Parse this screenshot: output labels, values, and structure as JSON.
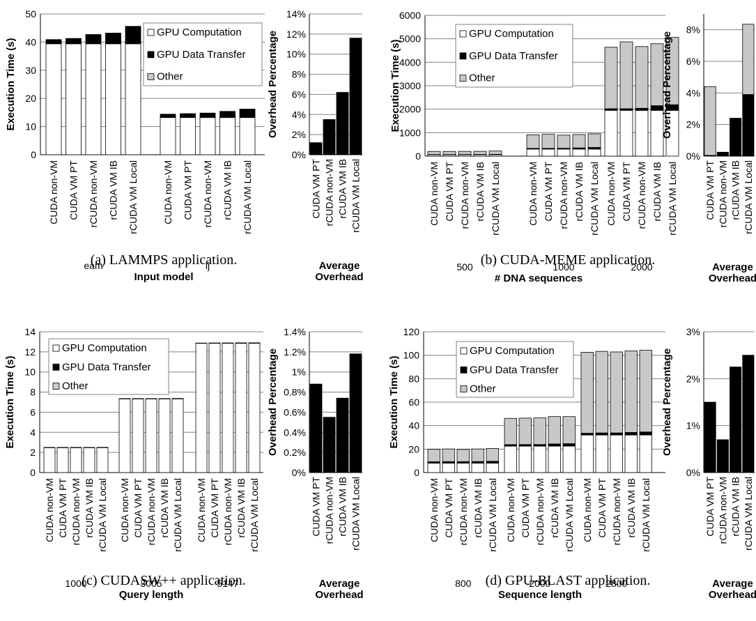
{
  "colors": {
    "computation": "#ffffff",
    "transfer": "#000000",
    "other": "#c8c8c8",
    "grid": "#808080",
    "axis": "#000000"
  },
  "legend": [
    "GPU Computation",
    "GPU Data Transfer",
    "Other"
  ],
  "overhead_category_label": "Average Overhead",
  "chart_data": [
    {
      "id": "a",
      "type": "bar",
      "stacked": true,
      "caption": "(a) LAMMPS application.",
      "ylabel": "Execution Time (s)",
      "xlabel": "Input model",
      "ylim": [
        0,
        50
      ],
      "yticks": [
        0,
        10,
        20,
        30,
        40,
        50
      ],
      "grid": true,
      "legend_position": "top-right",
      "groups": [
        "eam",
        "lj"
      ],
      "bar_labels": [
        [
          "CUDA non-VM",
          "CUDA VM PT",
          "rCUDA non-VM",
          "rCUDA VM IB",
          "rCUDA VM Local"
        ],
        [
          "CUDA non-VM",
          "CUDA VM PT",
          "rCUDA non-VM",
          "rCUDA VM IB",
          "rCUDA VM Local"
        ]
      ],
      "series": [
        {
          "name": "GPU Computation",
          "values": [
            [
              39.4,
              39.4,
              39.4,
              39.4,
              39.4
            ],
            [
              13.2,
              13.2,
              13.2,
              13.2,
              13.2
            ]
          ]
        },
        {
          "name": "GPU Data Transfer",
          "values": [
            [
              1.5,
              1.9,
              3.3,
              3.8,
              6.2
            ],
            [
              1.2,
              1.4,
              1.6,
              2.2,
              3.0
            ]
          ]
        },
        {
          "name": "Other",
          "values": [
            [
              0,
              0,
              0,
              0,
              0
            ],
            [
              0,
              0,
              0,
              0,
              0
            ]
          ]
        }
      ],
      "overhead": {
        "ylabel": "Overhead Percentage",
        "ylim": [
          0,
          14
        ],
        "yticks": [
          "0%",
          "2%",
          "4%",
          "6%",
          "8%",
          "10%",
          "12%",
          "14%"
        ],
        "labels": [
          "CUDA VM PT",
          "rCUDA non-VM",
          "rCUDA VM IB",
          "rCUDA VM Local"
        ],
        "transfer": [
          1.2,
          3.5,
          6.2,
          11.6
        ],
        "other": [
          0,
          0,
          0,
          0
        ]
      }
    },
    {
      "id": "b",
      "type": "bar",
      "stacked": true,
      "caption": "(b) CUDA-MEME application.",
      "ylabel": "Execution Time (s)",
      "xlabel": "# DNA sequences",
      "ylim": [
        0,
        6000
      ],
      "yticks": [
        0,
        1000,
        2000,
        3000,
        4000,
        5000,
        6000
      ],
      "grid": true,
      "legend_position": "top-left",
      "groups": [
        "500",
        "1000",
        "2000"
      ],
      "bar_labels": [
        [
          "CUDA non-VM",
          "CUDA VM PT",
          "rCUDA non-VM",
          "rCUDA VM IB",
          "rCUDA VM Local"
        ],
        [
          "CUDA non-VM",
          "CUDA VM PT",
          "rCUDA non-VM",
          "rCUDA VM IB",
          "rCUDA VM Local"
        ],
        [
          "CUDA non-VM",
          "CUDA VM PT",
          "rCUDA non-VM",
          "rCUDA VM IB",
          "rCUDA VM Local"
        ]
      ],
      "series": [
        {
          "name": "GPU Computation",
          "values": [
            [
              60,
              60,
              60,
              60,
              60
            ],
            [
              300,
              300,
              300,
              300,
              300
            ],
            [
              1950,
              1950,
              1950,
              1950,
              1950
            ]
          ]
        },
        {
          "name": "GPU Data Transfer",
          "values": [
            [
              10,
              10,
              12,
              14,
              18
            ],
            [
              30,
              30,
              35,
              50,
              70
            ],
            [
              70,
              70,
              90,
              200,
              240
            ]
          ]
        },
        {
          "name": "Other",
          "values": [
            [
              130,
              130,
              130,
              130,
              140
            ],
            [
              580,
              600,
              560,
              570,
              580
            ],
            [
              2620,
              2850,
              2630,
              2640,
              2870
            ]
          ]
        }
      ],
      "overhead": {
        "ylabel": "Overhead Percentage",
        "ylim": [
          0,
          9
        ],
        "yticks": [
          "0%",
          "2%",
          "4%",
          "6%",
          "8%"
        ],
        "labels": [
          "CUDA VM PT",
          "rCUDA non-VM",
          "rCUDA VM IB",
          "rCUDA VM Local"
        ],
        "transfer": [
          0.05,
          0.25,
          2.4,
          3.9
        ],
        "other": [
          4.35,
          0,
          0,
          4.45
        ]
      }
    },
    {
      "id": "c",
      "type": "bar",
      "stacked": true,
      "caption": "(c) CUDASW++ application.",
      "ylabel": "Execution Time (s)",
      "xlabel": "Query length",
      "ylim": [
        0,
        14
      ],
      "yticks": [
        0,
        2,
        4,
        6,
        8,
        10,
        12,
        14
      ],
      "grid": true,
      "legend_position": "top-left",
      "groups": [
        "1000",
        "3005",
        "5147"
      ],
      "bar_labels": [
        [
          "CUDA non-VM",
          "CUDA VM PT",
          "rCUDA non-VM",
          "rCUDA VM IB",
          "rCUDA VM Local"
        ],
        [
          "CUDA non-VM",
          "CUDA VM PT",
          "rCUDA non-VM",
          "rCUDA VM IB",
          "rCUDA VM Local"
        ],
        [
          "CUDA non-VM",
          "CUDA VM PT",
          "rCUDA non-VM",
          "rCUDA VM IB",
          "rCUDA VM Local"
        ]
      ],
      "series": [
        {
          "name": "GPU Computation",
          "values": [
            [
              2.48,
              2.48,
              2.48,
              2.48,
              2.48
            ],
            [
              7.33,
              7.33,
              7.33,
              7.33,
              7.33
            ],
            [
              12.85,
              12.85,
              12.85,
              12.85,
              12.85
            ]
          ]
        },
        {
          "name": "GPU Data Transfer",
          "values": [
            [
              0.02,
              0.02,
              0.02,
              0.02,
              0.03
            ],
            [
              0.03,
              0.03,
              0.03,
              0.03,
              0.04
            ],
            [
              0.03,
              0.04,
              0.04,
              0.05,
              0.05
            ]
          ]
        },
        {
          "name": "Other",
          "values": [
            [
              0,
              0,
              0,
              0,
              0
            ],
            [
              0,
              0,
              0,
              0,
              0
            ],
            [
              0,
              0,
              0,
              0,
              0
            ]
          ]
        }
      ],
      "overhead": {
        "ylabel": "Overhead Percentage",
        "ylim": [
          0,
          1.4
        ],
        "yticks": [
          "0%",
          "0.2%",
          "0.4%",
          "0.6%",
          "0.8%",
          "1%",
          "1.2%",
          "1.4%"
        ],
        "labels": [
          "CUDA VM PT",
          "rCUDA non-VM",
          "rCUDA VM IB",
          "rCUDA VM Local"
        ],
        "transfer": [
          0.88,
          0.55,
          0.74,
          1.18
        ],
        "other": [
          0,
          0,
          0,
          0
        ]
      }
    },
    {
      "id": "d",
      "type": "bar",
      "stacked": true,
      "caption": "(d) GPU-BLAST application.",
      "ylabel": "Execution Time (s)",
      "xlabel": "Sequence length",
      "ylim": [
        0,
        120
      ],
      "yticks": [
        0,
        20,
        40,
        60,
        80,
        100,
        120
      ],
      "grid": true,
      "legend_position": "top-left",
      "groups": [
        "800",
        "2000",
        "2800"
      ],
      "bar_labels": [
        [
          "CUDA non-VM",
          "CUDA VM PT",
          "rCUDA non-VM",
          "rCUDA VM IB",
          "rCUDA VM Local"
        ],
        [
          "CUDA non-VM",
          "CUDA VM PT",
          "rCUDA non-VM",
          "rCUDA VM IB",
          "rCUDA VM Local"
        ],
        [
          "CUDA non-VM",
          "CUDA VM PT",
          "rCUDA non-VM",
          "rCUDA VM IB",
          "rCUDA VM Local"
        ]
      ],
      "series": [
        {
          "name": "GPU Computation",
          "values": [
            [
              8,
              8,
              8,
              8,
              8
            ],
            [
              22.5,
              22.5,
              22.5,
              22.5,
              22.5
            ],
            [
              32,
              32,
              32,
              32,
              32
            ]
          ]
        },
        {
          "name": "GPU Data Transfer",
          "values": [
            [
              1.2,
              1.3,
              1.3,
              1.4,
              1.6
            ],
            [
              1.3,
              1.4,
              1.4,
              1.9,
              2.1
            ],
            [
              1.5,
              1.8,
              1.8,
              2.2,
              2.6
            ]
          ]
        },
        {
          "name": "Other",
          "values": [
            [
              10.6,
              10.8,
              10.4,
              10.7,
              10.9
            ],
            [
              22.4,
              22.5,
              22.7,
              23.3,
              23.1
            ],
            [
              69,
              69.5,
              69,
              69.5,
              69.6
            ]
          ]
        }
      ],
      "overhead": {
        "ylabel": "Overhead Percentage",
        "ylim": [
          0,
          3
        ],
        "yticks": [
          "0%",
          "1%",
          "2%",
          "3%"
        ],
        "labels": [
          "CUDA VM PT",
          "rCUDA non-VM",
          "rCUDA VM IB",
          "rCUDA VM Local"
        ],
        "transfer": [
          1.5,
          0.7,
          2.25,
          2.5
        ],
        "other": [
          0,
          0,
          0,
          0
        ]
      }
    }
  ]
}
